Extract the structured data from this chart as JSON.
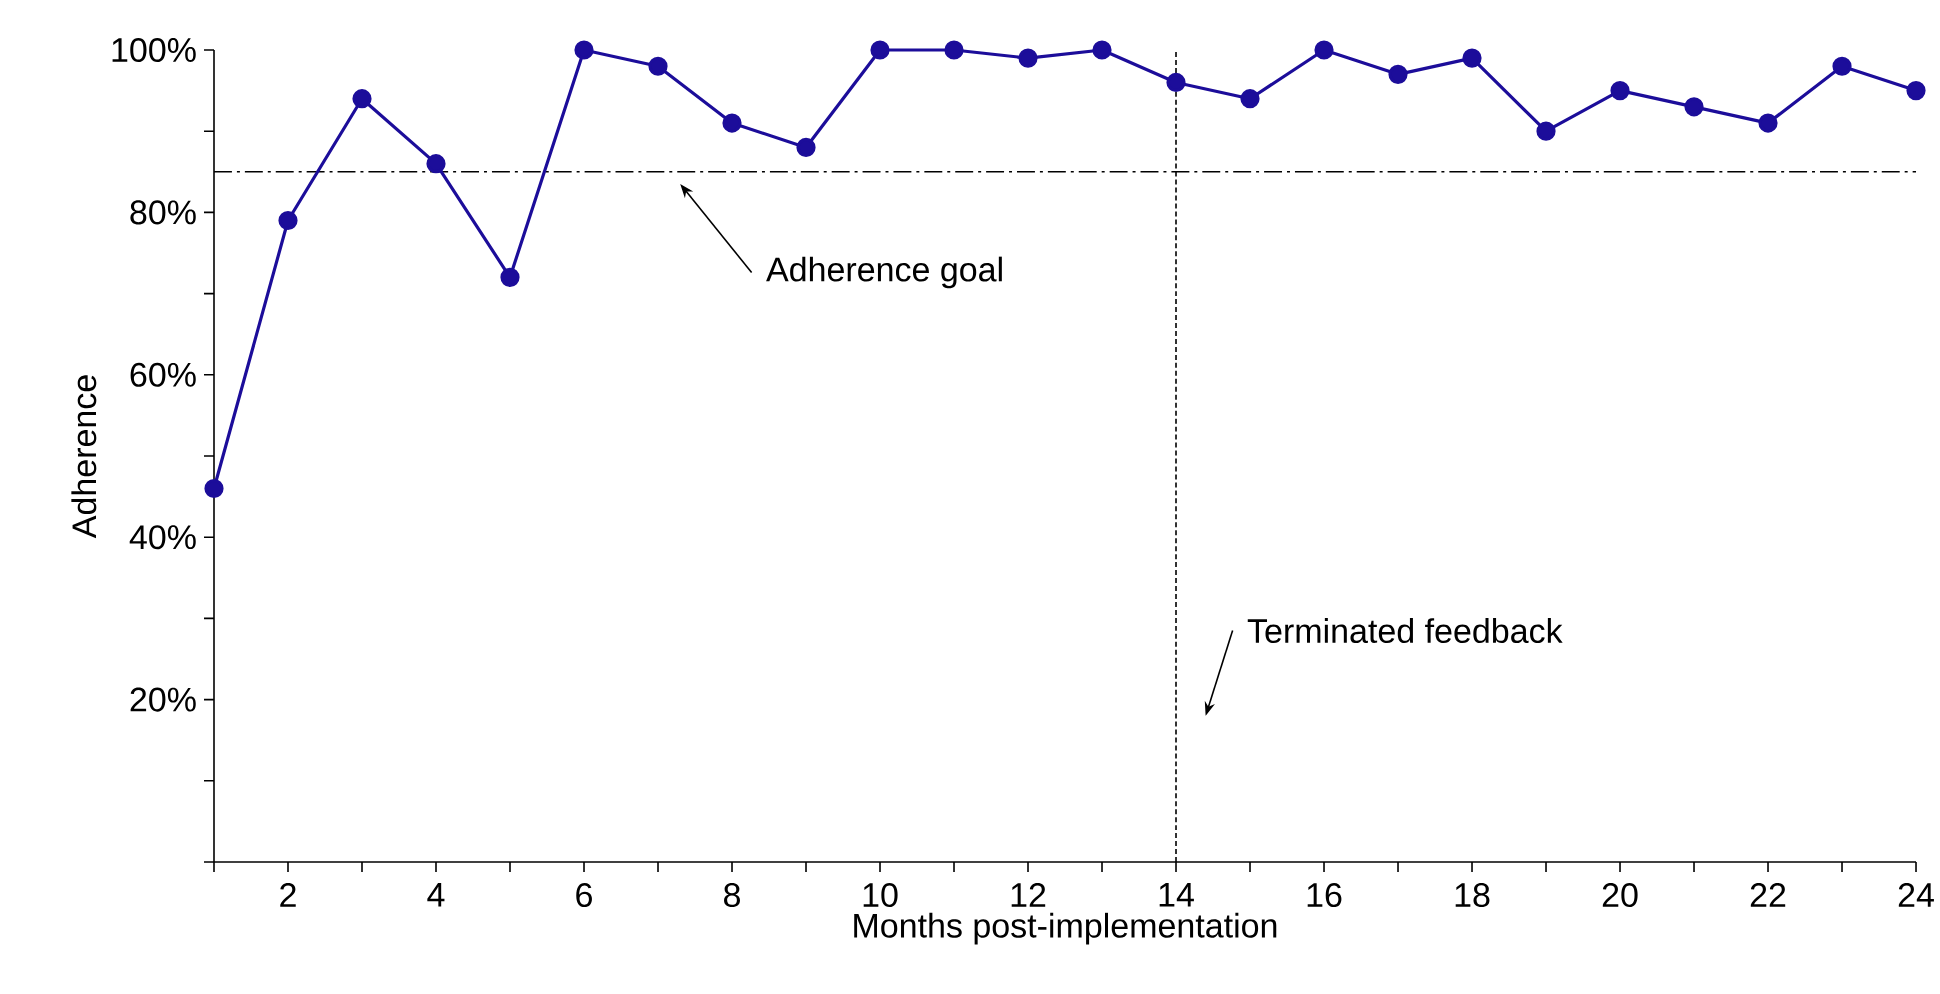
{
  "chart_data": {
    "type": "line",
    "xlabel": "Months post-implementation",
    "ylabel": "Adherence",
    "x": [
      1,
      2,
      3,
      4,
      5,
      6,
      7,
      8,
      9,
      10,
      11,
      12,
      13,
      14,
      15,
      16,
      17,
      18,
      19,
      20,
      21,
      22,
      23,
      24
    ],
    "series": [
      {
        "color": "#1c0d9a",
        "values": [
          46,
          79,
          94,
          86,
          72,
          100,
          98,
          91,
          88,
          100,
          100,
          99,
          100,
          96,
          94,
          100,
          97,
          99,
          90,
          95,
          93,
          91,
          98,
          95
        ]
      }
    ],
    "marker": "circle",
    "line_style": "solid",
    "xlim": [
      1,
      24
    ],
    "ylim": [
      0,
      100
    ],
    "xticks": [
      {
        "value": 1,
        "label": null
      },
      2,
      {
        "value": 3,
        "label": null
      },
      4,
      {
        "value": 5,
        "label": null
      },
      6,
      {
        "value": 7,
        "label": null
      },
      8,
      {
        "value": 9,
        "label": null
      },
      10,
      {
        "value": 11,
        "label": null
      },
      12,
      {
        "value": 13,
        "label": null
      },
      14,
      {
        "value": 15,
        "label": null
      },
      16,
      {
        "value": 17,
        "label": null
      },
      18,
      {
        "value": 19,
        "label": null
      },
      20,
      {
        "value": 21,
        "label": null
      },
      22,
      {
        "value": 23,
        "label": null
      },
      24
    ],
    "yticks": [
      {
        "value": 0,
        "label": null
      },
      {
        "value": 10,
        "label": null
      },
      {
        "value": 20,
        "label": "20%"
      },
      {
        "value": 30,
        "label": null
      },
      {
        "value": 40,
        "label": "40%"
      },
      {
        "value": 50,
        "label": null
      },
      {
        "value": 60,
        "label": "60%"
      },
      {
        "value": 70,
        "label": null
      },
      {
        "value": 80,
        "label": "80%"
      },
      {
        "value": 90,
        "label": null
      },
      {
        "value": 100,
        "label": "100%"
      }
    ],
    "ref_lines": [
      {
        "axis": "y",
        "value": 85,
        "color": "#000000",
        "line_style": "dashdot"
      },
      {
        "axis": "x",
        "value": 14,
        "color": "#000000",
        "line_style": "dotted"
      }
    ],
    "annotations": [
      "Adherence goal",
      "Terminated feedback"
    ]
  }
}
